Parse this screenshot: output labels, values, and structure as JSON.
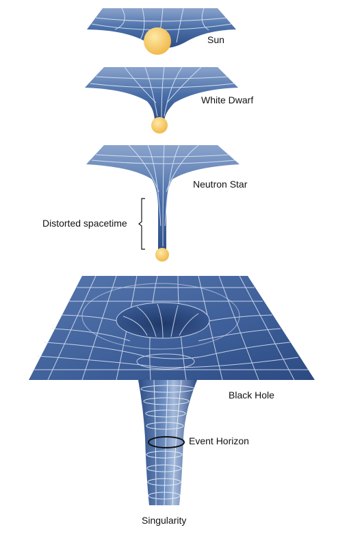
{
  "labels": {
    "sun": "Sun",
    "white_dwarf": "White Dwarf",
    "neutron_star": "Neutron Star",
    "distorted_spacetime": "Distorted spacetime",
    "black_hole": "Black Hole",
    "event_horizon": "Event Horizon",
    "singularity": "Singularity"
  },
  "colors": {
    "surface_dark": "#2e4d86",
    "surface_mid": "#4a6fa8",
    "surface_light": "#8aa3cc",
    "grid_line": "#dfe7f5",
    "star_light": "#fde9a6",
    "star_dark": "#f0b544",
    "outline": "#111111"
  }
}
